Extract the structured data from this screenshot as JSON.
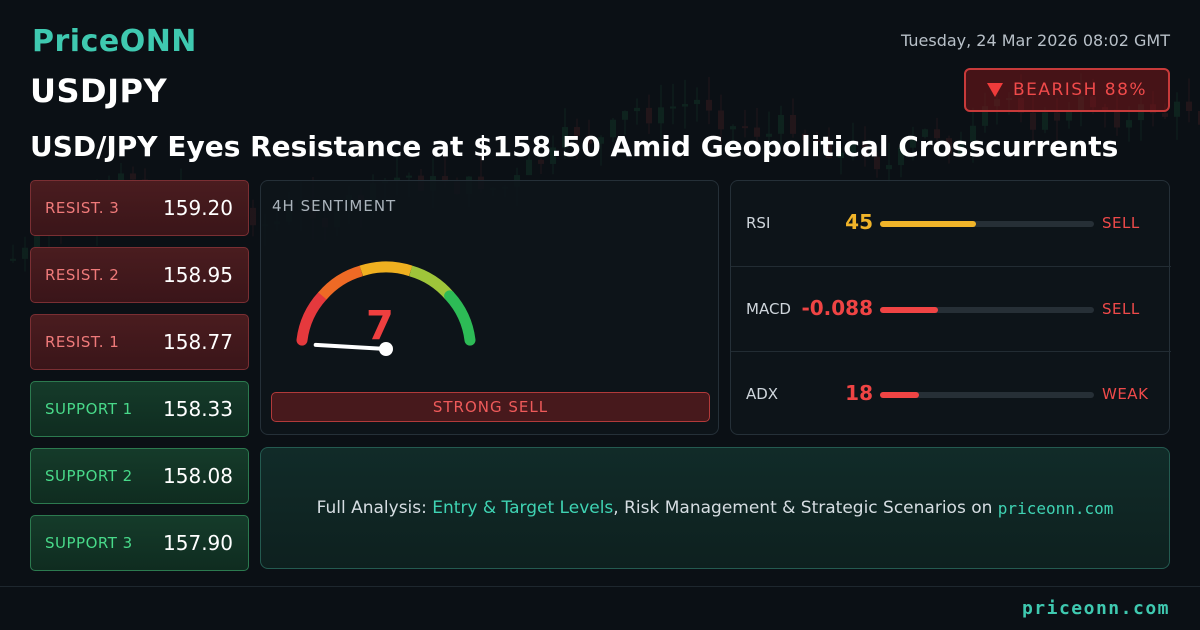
{
  "brand": {
    "logo": "PriceONN",
    "footer_site": "priceonn.com"
  },
  "header": {
    "datetime": "Tuesday, 24 Mar 2026 08:02 GMT",
    "symbol": "USDJPY",
    "bias": {
      "label": "BEARISH 88%",
      "icon": "down-triangle-icon",
      "color": "#ef3b3b"
    },
    "headline": "USD/JPY Eyes Resistance at $158.50 Amid Geopolitical Crosscurrents"
  },
  "levels": [
    {
      "label": "RESIST. 3",
      "value": "159.20",
      "kind": "resistance"
    },
    {
      "label": "RESIST. 2",
      "value": "158.95",
      "kind": "resistance"
    },
    {
      "label": "RESIST. 1",
      "value": "158.77",
      "kind": "resistance"
    },
    {
      "label": "SUPPORT 1",
      "value": "158.33",
      "kind": "support"
    },
    {
      "label": "SUPPORT 2",
      "value": "158.08",
      "kind": "support"
    },
    {
      "label": "SUPPORT 3",
      "value": "157.90",
      "kind": "support"
    }
  ],
  "sentiment": {
    "title": "4H SENTIMENT",
    "score": 7,
    "scale_max": 100,
    "verdict": "STRONG SELL"
  },
  "indicators": [
    {
      "name": "RSI",
      "value": "45",
      "level": 0.45,
      "signal": "SELL",
      "color": "#f0b429"
    },
    {
      "name": "MACD",
      "value": "-0.088",
      "level": 0.27,
      "signal": "SELL",
      "color": "#ef4444"
    },
    {
      "name": "ADX",
      "value": "18",
      "level": 0.18,
      "signal": "WEAK",
      "color": "#ef4444"
    }
  ],
  "cta": {
    "prefix": "Full Analysis: ",
    "highlight": "Entry & Target Levels",
    "middle": ", Risk Management & Strategic Scenarios on ",
    "site": "priceonn.com"
  },
  "colors": {
    "accent": "#3fc9b0",
    "bearish": "#ef3b3b",
    "bullish": "#48d989",
    "warning": "#f0b429"
  }
}
